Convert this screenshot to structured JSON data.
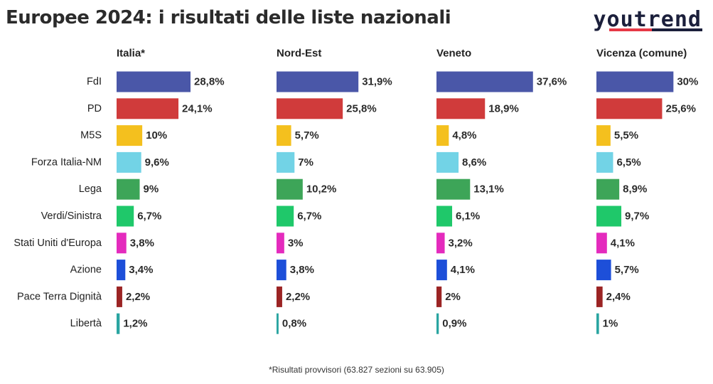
{
  "header": {
    "title": "Europee 2024: i risultati delle liste nazionali",
    "brand": "youtrend",
    "brand_colors": {
      "accent": "#e63946",
      "text": "#1b1f3b"
    }
  },
  "footnote": "*Risultati provvisori (63.827 sezioni su 63.905)",
  "chart_data": {
    "type": "bar",
    "orientation": "horizontal",
    "small_multiples": true,
    "categories": [
      "FdI",
      "PD",
      "M5S",
      "Forza Italia-NM",
      "Lega",
      "Verdi/Sinistra",
      "Stati Uniti d'Europa",
      "Azione",
      "Pace Terra Dignità",
      "Libertà"
    ],
    "colors": [
      "#4a57a8",
      "#d03b3b",
      "#f4c01e",
      "#72d3e6",
      "#3da558",
      "#1fc86a",
      "#e42bbd",
      "#1d4fd9",
      "#9b2424",
      "#2aa5a1"
    ],
    "xlim": [
      0,
      40
    ],
    "series": [
      {
        "name": "Italia*",
        "values": [
          28.8,
          24.1,
          10,
          9.6,
          9,
          6.7,
          3.8,
          3.4,
          2.2,
          1.2
        ],
        "labels": [
          "28,8%",
          "24,1%",
          "10%",
          "9,6%",
          "9%",
          "6,7%",
          "3,8%",
          "3,4%",
          "2,2%",
          "1,2%"
        ]
      },
      {
        "name": "Nord-Est",
        "values": [
          31.9,
          25.8,
          5.7,
          7,
          10.2,
          6.7,
          3,
          3.8,
          2.2,
          0.8
        ],
        "labels": [
          "31,9%",
          "25,8%",
          "5,7%",
          "7%",
          "10,2%",
          "6,7%",
          "3%",
          "3,8%",
          "2,2%",
          "0,8%"
        ]
      },
      {
        "name": "Veneto",
        "values": [
          37.6,
          18.9,
          4.8,
          8.6,
          13.1,
          6.1,
          3.2,
          4.1,
          2,
          0.9
        ],
        "labels": [
          "37,6%",
          "18,9%",
          "4,8%",
          "8,6%",
          "13,1%",
          "6,1%",
          "3,2%",
          "4,1%",
          "2%",
          "0,9%"
        ]
      },
      {
        "name": "Vicenza (comune)",
        "values": [
          30,
          25.6,
          5.5,
          6.5,
          8.9,
          9.7,
          4.1,
          5.7,
          2.4,
          1
        ],
        "labels": [
          "30%",
          "25,6%",
          "5,5%",
          "6,5%",
          "8,9%",
          "9,7%",
          "4,1%",
          "5,7%",
          "2,4%",
          "1%"
        ]
      }
    ]
  }
}
